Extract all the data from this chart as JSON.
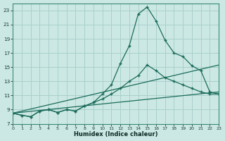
{
  "bg_color": "#cce8e4",
  "grid_color": "#a8d0cc",
  "line_color": "#1a6b5a",
  "xlabel": "Humidex (Indice chaleur)",
  "xlim": [
    0,
    23
  ],
  "ylim": [
    7,
    24
  ],
  "yticks": [
    7,
    9,
    11,
    13,
    15,
    17,
    19,
    21,
    23
  ],
  "xticks": [
    0,
    1,
    2,
    3,
    4,
    5,
    6,
    7,
    8,
    9,
    10,
    11,
    12,
    13,
    14,
    15,
    16,
    17,
    18,
    19,
    20,
    21,
    22,
    23
  ],
  "curve1_x": [
    0,
    1,
    2,
    3,
    4,
    5,
    6,
    7,
    8,
    9,
    10,
    11,
    12,
    13,
    14,
    15,
    16,
    17,
    18,
    19,
    20,
    21,
    22,
    23
  ],
  "curve1_y": [
    8.5,
    8.2,
    8.0,
    8.8,
    9.0,
    8.6,
    9.0,
    8.8,
    9.5,
    10.0,
    11.2,
    12.5,
    15.5,
    18.0,
    22.5,
    23.5,
    21.5,
    18.8,
    17.0,
    16.5,
    15.2,
    14.5,
    11.5,
    11.2
  ],
  "curve2_x": [
    0,
    1,
    2,
    3,
    4,
    5,
    6,
    7,
    8,
    9,
    10,
    11,
    12,
    13,
    14,
    15,
    16,
    17,
    18,
    19,
    20,
    21,
    22,
    23
  ],
  "curve2_y": [
    8.5,
    8.2,
    8.0,
    8.8,
    9.0,
    8.6,
    9.0,
    8.8,
    9.5,
    10.0,
    10.5,
    11.2,
    12.0,
    13.0,
    13.8,
    15.3,
    14.5,
    13.5,
    13.0,
    12.5,
    12.0,
    11.5,
    11.2,
    11.2
  ],
  "line3_x": [
    0,
    23
  ],
  "line3_y": [
    8.5,
    15.3
  ],
  "line4_x": [
    0,
    23
  ],
  "line4_y": [
    8.5,
    11.5
  ]
}
